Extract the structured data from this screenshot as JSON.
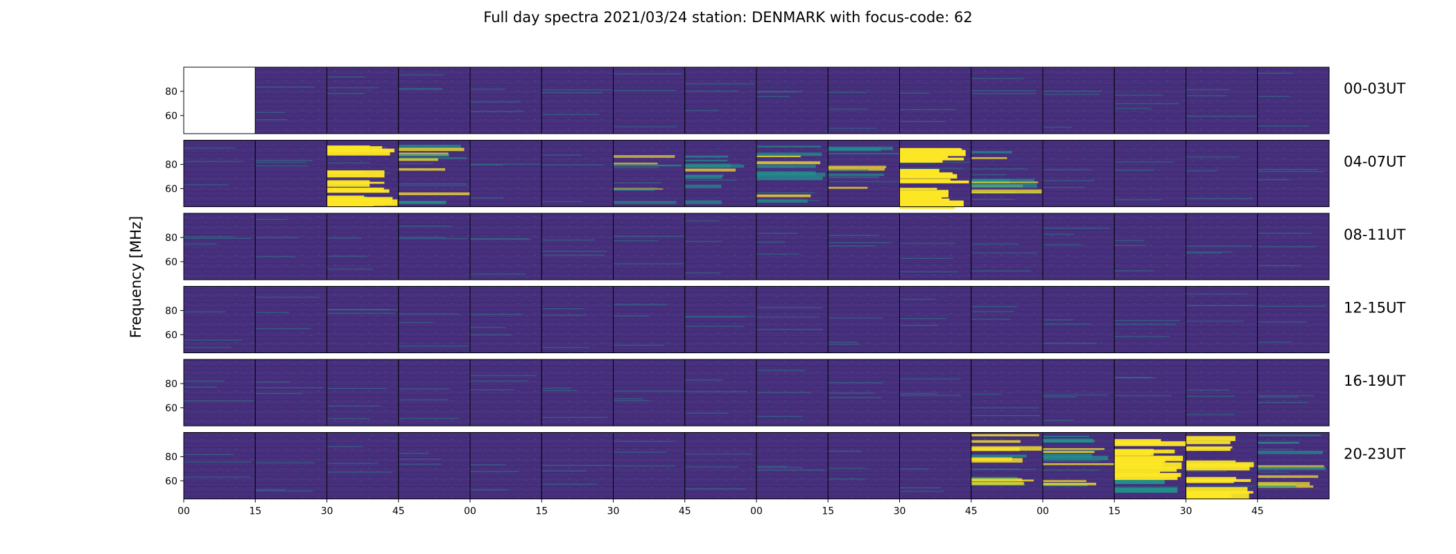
{
  "chart_data": {
    "type": "heatmap",
    "title": "Full day spectra 2021/03/24 station: DENMARK with focus-code: 62",
    "ylabel": "Frequency [MHz]",
    "yticks": [
      60,
      80
    ],
    "ylim": [
      45,
      100
    ],
    "xtick_labels": [
      "00",
      "15",
      "30",
      "45",
      "00",
      "15",
      "30",
      "45",
      "00",
      "15",
      "30",
      "45",
      "00",
      "15",
      "30",
      "45"
    ],
    "panels_per_row": 16,
    "rows": [
      {
        "label": "00-03UT",
        "blank_panels": [
          0
        ],
        "events": []
      },
      {
        "label": "04-07UT",
        "blank_panels": [],
        "events": [
          {
            "panel": 2,
            "intensity": 0.9
          },
          {
            "panel": 3,
            "intensity": 0.45
          },
          {
            "panel": 6,
            "intensity": 0.2
          },
          {
            "panel": 7,
            "intensity": 0.35
          },
          {
            "panel": 8,
            "intensity": 0.45
          },
          {
            "panel": 9,
            "intensity": 0.35
          },
          {
            "panel": 10,
            "intensity": 1.0
          },
          {
            "panel": 11,
            "intensity": 0.4
          }
        ]
      },
      {
        "label": "08-11UT",
        "blank_panels": [],
        "events": []
      },
      {
        "label": "12-15UT",
        "blank_panels": [],
        "events": []
      },
      {
        "label": "16-19UT",
        "blank_panels": [],
        "events": []
      },
      {
        "label": "20-23UT",
        "blank_panels": [],
        "events": [
          {
            "panel": 11,
            "intensity": 0.55
          },
          {
            "panel": 12,
            "intensity": 0.5
          },
          {
            "panel": 13,
            "intensity": 0.9
          },
          {
            "panel": 14,
            "intensity": 0.85
          },
          {
            "panel": 15,
            "intensity": 0.35
          }
        ]
      }
    ],
    "colormap": {
      "low": "#452d7d",
      "mid": "#21918c",
      "high": "#fde725"
    }
  }
}
